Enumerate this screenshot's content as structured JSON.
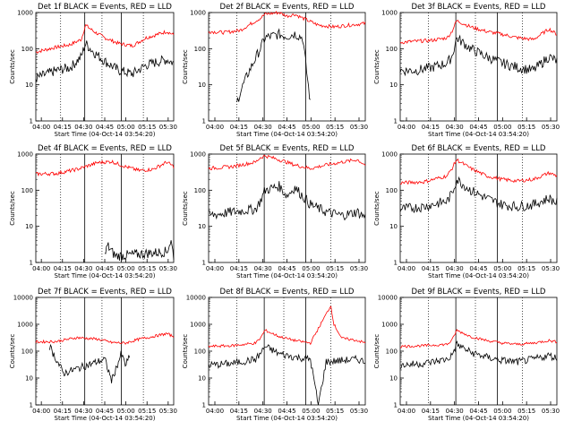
{
  "chart_data": [
    {
      "type": "line",
      "title": "Det 1f BLACK = Events, RED = LLD",
      "xlabel": "Start Time (04-Oct-14 03:54:20)",
      "ylabel": "Counts/sec",
      "yscale": "log",
      "ylim": [
        1,
        1000
      ],
      "x_ticks": [
        "04:00",
        "04:15",
        "04:30",
        "04:45",
        "05:00",
        "05:15",
        "05:30"
      ],
      "y_ticks": [
        "1",
        "10",
        "100",
        "1000"
      ],
      "series": [
        {
          "color": "#ff0000",
          "x": [
            0,
            0.05,
            0.15,
            0.25,
            0.33,
            0.36,
            0.42,
            0.5,
            0.6,
            0.7,
            0.8,
            0.9,
            0.95,
            1
          ],
          "y": [
            80,
            90,
            110,
            130,
            180,
            450,
            300,
            200,
            140,
            120,
            200,
            260,
            300,
            240
          ]
        },
        {
          "color": "#000000",
          "x": [
            0,
            0.05,
            0.15,
            0.25,
            0.33,
            0.36,
            0.42,
            0.5,
            0.6,
            0.7,
            0.8,
            0.9,
            0.95,
            1
          ],
          "y": [
            15,
            18,
            25,
            30,
            60,
            140,
            80,
            45,
            25,
            20,
            35,
            45,
            50,
            40
          ]
        }
      ]
    },
    {
      "type": "line",
      "title": "Det 2f BLACK = Events, RED = LLD",
      "xlabel": "Start Time (04-Oct-14 03:54:20)",
      "ylabel": "Counts/sec",
      "yscale": "log",
      "ylim": [
        1,
        1000
      ],
      "x_ticks": [
        "04:00",
        "04:15",
        "04:30",
        "04:45",
        "05:00",
        "05:15",
        "05:30"
      ],
      "y_ticks": [
        "1",
        "10",
        "100",
        "1000"
      ],
      "series": [
        {
          "color": "#ff0000",
          "x": [
            0,
            0.1,
            0.2,
            0.33,
            0.36,
            0.45,
            0.5,
            0.55,
            0.6,
            0.7,
            0.8,
            0.9,
            1
          ],
          "y": [
            300,
            280,
            320,
            700,
            900,
            1000,
            800,
            900,
            700,
            450,
            400,
            450,
            500
          ]
        },
        {
          "color": "#000000",
          "x": [
            0.18,
            0.2,
            0.25,
            0.33,
            0.36,
            0.45,
            0.5,
            0.55,
            0.6,
            0.65
          ],
          "y": [
            3,
            6,
            20,
            100,
            200,
            250,
            220,
            260,
            200,
            3
          ]
        }
      ]
    },
    {
      "type": "line",
      "title": "Det 3f BLACK = Events, RED = LLD",
      "xlabel": "Start Time (04-Oct-14 03:54:20)",
      "ylabel": "Counts/sec",
      "yscale": "log",
      "ylim": [
        1,
        1000
      ],
      "x_ticks": [
        "04:00",
        "04:15",
        "04:30",
        "04:45",
        "05:00",
        "05:15",
        "05:30"
      ],
      "y_ticks": [
        "1",
        "10",
        "100",
        "1000"
      ],
      "series": [
        {
          "color": "#ff0000",
          "x": [
            0,
            0.1,
            0.2,
            0.3,
            0.33,
            0.36,
            0.45,
            0.55,
            0.65,
            0.75,
            0.85,
            0.95,
            1
          ],
          "y": [
            150,
            160,
            170,
            200,
            300,
            600,
            400,
            300,
            250,
            200,
            180,
            350,
            250
          ]
        },
        {
          "color": "#000000",
          "x": [
            0,
            0.1,
            0.2,
            0.3,
            0.33,
            0.36,
            0.45,
            0.55,
            0.65,
            0.75,
            0.85,
            0.95,
            1
          ],
          "y": [
            25,
            25,
            30,
            40,
            60,
            200,
            100,
            60,
            40,
            30,
            25,
            60,
            45
          ]
        }
      ]
    },
    {
      "type": "line",
      "title": "Det 4f BLACK = Events, RED = LLD",
      "xlabel": "Start Time (04-Oct-14 03:54:20)",
      "ylabel": "Counts/sec",
      "yscale": "log",
      "ylim": [
        1,
        1000
      ],
      "x_ticks": [
        "04:00",
        "04:15",
        "04:30",
        "04:45",
        "05:00",
        "05:15",
        "05:30"
      ],
      "y_ticks": [
        "1",
        "10",
        "100",
        "1000"
      ],
      "series": [
        {
          "color": "#ff0000",
          "x": [
            0,
            0.15,
            0.3,
            0.45,
            0.55,
            0.65,
            0.75,
            0.85,
            0.95,
            1
          ],
          "y": [
            280,
            290,
            380,
            580,
            620,
            450,
            350,
            380,
            600,
            450
          ]
        },
        {
          "color": "#000000",
          "x": [
            0.5,
            0.52,
            0.55,
            0.58,
            0.95,
            0.98,
            1
          ],
          "y": [
            1.5,
            3,
            2,
            1.5,
            2,
            4,
            1.5
          ]
        }
      ]
    },
    {
      "type": "line",
      "title": "Det 5f BLACK = Events, RED = LLD",
      "xlabel": "Start Time (04-Oct-14 03:54:20)",
      "ylabel": "Counts/sec",
      "yscale": "log",
      "ylim": [
        1,
        1000
      ],
      "x_ticks": [
        "04:00",
        "04:15",
        "04:30",
        "04:45",
        "05:00",
        "05:15",
        "05:30"
      ],
      "y_ticks": [
        "1",
        "10",
        "100",
        "1000"
      ],
      "series": [
        {
          "color": "#ff0000",
          "x": [
            0,
            0.15,
            0.3,
            0.33,
            0.36,
            0.45,
            0.55,
            0.65,
            0.75,
            0.85,
            0.95,
            1
          ],
          "y": [
            400,
            450,
            600,
            800,
            900,
            700,
            500,
            400,
            500,
            600,
            700,
            500
          ]
        },
        {
          "color": "#000000",
          "x": [
            0,
            0.15,
            0.3,
            0.33,
            0.36,
            0.45,
            0.5,
            0.55,
            0.65,
            0.75,
            0.85,
            0.95,
            1
          ],
          "y": [
            20,
            25,
            30,
            50,
            100,
            130,
            70,
            120,
            40,
            25,
            20,
            25,
            18
          ]
        }
      ]
    },
    {
      "type": "line",
      "title": "Det 6f BLACK = Events, RED = LLD",
      "xlabel": "Start Time (04-Oct-14 03:54:20)",
      "ylabel": "Counts/sec",
      "yscale": "log",
      "ylim": [
        1,
        1000
      ],
      "x_ticks": [
        "04:00",
        "04:15",
        "04:30",
        "04:45",
        "05:00",
        "05:15",
        "05:30"
      ],
      "y_ticks": [
        "1",
        "10",
        "100",
        "1000"
      ],
      "series": [
        {
          "color": "#ff0000",
          "x": [
            0,
            0.15,
            0.3,
            0.33,
            0.36,
            0.45,
            0.55,
            0.65,
            0.75,
            0.85,
            0.95,
            1
          ],
          "y": [
            160,
            170,
            250,
            400,
            700,
            400,
            250,
            200,
            180,
            200,
            300,
            250
          ]
        },
        {
          "color": "#000000",
          "x": [
            0,
            0.15,
            0.3,
            0.33,
            0.36,
            0.45,
            0.55,
            0.65,
            0.75,
            0.85,
            0.95,
            1
          ],
          "y": [
            30,
            35,
            50,
            80,
            200,
            100,
            60,
            40,
            35,
            40,
            60,
            45
          ]
        }
      ]
    },
    {
      "type": "line",
      "title": "Det 7f BLACK = Events, RED = LLD",
      "xlabel": "Start Time (04-Oct-14 03:54:20)",
      "ylabel": "Counts/sec",
      "yscale": "log",
      "ylim": [
        1,
        10000
      ],
      "x_ticks": [
        "04:00",
        "04:15",
        "04:30",
        "04:45",
        "05:00",
        "05:15",
        "05:30"
      ],
      "y_ticks": [
        "1",
        "10",
        "100",
        "1000",
        "10000"
      ],
      "series": [
        {
          "color": "#ff0000",
          "x": [
            0,
            0.15,
            0.3,
            0.45,
            0.55,
            0.65,
            0.75,
            0.85,
            0.95,
            1
          ],
          "y": [
            220,
            230,
            320,
            280,
            210,
            200,
            280,
            350,
            450,
            350
          ]
        },
        {
          "color": "#000000",
          "x": [
            0.1,
            0.2,
            0.5,
            0.55,
            0.62,
            0.65,
            0.68
          ],
          "y": [
            150,
            15,
            50,
            8,
            80,
            30,
            60
          ]
        }
      ]
    },
    {
      "type": "line",
      "title": "Det 8f BLACK = Events, RED = LLD",
      "xlabel": "Start Time (04-Oct-14 03:54:20)",
      "ylabel": "Counts/sec",
      "yscale": "log",
      "ylim": [
        1,
        10000
      ],
      "x_ticks": [
        "04:00",
        "04:15",
        "04:30",
        "04:45",
        "05:00",
        "05:15",
        "05:30"
      ],
      "y_ticks": [
        "1",
        "10",
        "100",
        "1000",
        "10000"
      ],
      "series": [
        {
          "color": "#ff0000",
          "x": [
            0,
            0.15,
            0.3,
            0.33,
            0.36,
            0.45,
            0.55,
            0.65,
            0.78,
            0.8,
            0.85,
            0.95,
            1
          ],
          "y": [
            150,
            160,
            200,
            300,
            600,
            350,
            250,
            200,
            5000,
            1000,
            300,
            250,
            200
          ]
        },
        {
          "color": "#000000",
          "x": [
            0,
            0.15,
            0.3,
            0.33,
            0.36,
            0.45,
            0.55,
            0.65,
            0.7,
            0.75,
            0.85,
            0.95,
            1
          ],
          "y": [
            30,
            35,
            50,
            80,
            150,
            80,
            60,
            50,
            1,
            40,
            45,
            50,
            40
          ]
        }
      ]
    },
    {
      "type": "line",
      "title": "Det 9f BLACK = Events, RED = LLD",
      "xlabel": "Start Time (04-Oct-14 03:54:20)",
      "ylabel": "Counts/sec",
      "yscale": "log",
      "ylim": [
        1,
        10000
      ],
      "x_ticks": [
        "04:00",
        "04:15",
        "04:30",
        "04:45",
        "05:00",
        "05:15",
        "05:30"
      ],
      "y_ticks": [
        "1",
        "10",
        "100",
        "1000",
        "10000"
      ],
      "series": [
        {
          "color": "#ff0000",
          "x": [
            0,
            0.15,
            0.3,
            0.33,
            0.36,
            0.45,
            0.55,
            0.65,
            0.75,
            0.85,
            0.95,
            1
          ],
          "y": [
            150,
            160,
            180,
            250,
            600,
            350,
            250,
            200,
            180,
            200,
            250,
            220
          ]
        },
        {
          "color": "#000000",
          "x": [
            0,
            0.15,
            0.3,
            0.33,
            0.36,
            0.45,
            0.55,
            0.65,
            0.75,
            0.85,
            0.95,
            1
          ],
          "y": [
            30,
            35,
            50,
            70,
            180,
            90,
            60,
            45,
            40,
            50,
            70,
            55
          ]
        }
      ]
    }
  ]
}
